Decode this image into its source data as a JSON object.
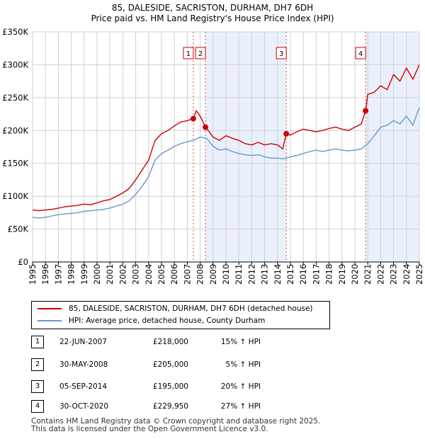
{
  "title_line1": "85, DALESIDE, SACRISTON, DURHAM, DH7 6DH",
  "title_line2": "Price paid vs. HM Land Registry's House Price Index (HPI)",
  "colors": {
    "property": "#cc0000",
    "hpi": "#6699cc",
    "shade": "#eaf0fb",
    "grid": "#d0d0d0",
    "marker_line": "#cc0000"
  },
  "legend": {
    "property_label": "85, DALESIDE, SACRISTON, DURHAM, DH7 6DH (detached house)",
    "hpi_label": "HPI: Average price, detached house, County Durham"
  },
  "sales": [
    {
      "num": "1",
      "date": "22-JUN-2007",
      "price": "£218,000",
      "hpi": "15% ↑ HPI"
    },
    {
      "num": "2",
      "date": "30-MAY-2008",
      "price": "£205,000",
      "hpi": "5% ↑ HPI"
    },
    {
      "num": "3",
      "date": "05-SEP-2014",
      "price": "£195,000",
      "hpi": "20% ↑ HPI"
    },
    {
      "num": "4",
      "date": "30-OCT-2020",
      "price": "£229,950",
      "hpi": "27% ↑ HPI"
    }
  ],
  "footer": {
    "line1": "Contains HM Land Registry data © Crown copyright and database right 2025.",
    "line2": "This data is licensed under the Open Government Licence v3.0."
  },
  "chart_data": {
    "type": "line",
    "title": "Price paid vs. HM Land Registry's House Price Index (HPI)",
    "xlim": [
      1995,
      2025
    ],
    "ylim": [
      0,
      350000
    ],
    "x_ticks": [
      "1995",
      "1996",
      "1997",
      "1998",
      "1999",
      "2000",
      "2001",
      "2002",
      "2003",
      "2004",
      "2005",
      "2006",
      "2007",
      "2008",
      "2009",
      "2010",
      "2011",
      "2012",
      "2013",
      "2014",
      "2015",
      "2016",
      "2017",
      "2018",
      "2019",
      "2020",
      "2021",
      "2022",
      "2023",
      "2024",
      "2025"
    ],
    "y_ticks": [
      {
        "value": 0,
        "label": "£0"
      },
      {
        "value": 50000,
        "label": "£50K"
      },
      {
        "value": 100000,
        "label": "£100K"
      },
      {
        "value": 150000,
        "label": "£150K"
      },
      {
        "value": 200000,
        "label": "£200K"
      },
      {
        "value": 250000,
        "label": "£250K"
      },
      {
        "value": 300000,
        "label": "£300K"
      },
      {
        "value": 350000,
        "label": "£350K"
      }
    ],
    "shaded_ranges": [
      [
        2008.41,
        2014.68
      ],
      [
        2020.83,
        2025.0
      ]
    ],
    "markers": [
      {
        "label": "1",
        "x": 2007.47,
        "y": 218000
      },
      {
        "label": "2",
        "x": 2008.41,
        "y": 205000
      },
      {
        "label": "3",
        "x": 2014.68,
        "y": 195000
      },
      {
        "label": "4",
        "x": 2020.83,
        "y": 229950
      }
    ],
    "series": [
      {
        "name": "85, DALESIDE, SACRISTON, DURHAM, DH7 6DH (detached house)",
        "x": [
          1995.0,
          1995.5,
          1996.0,
          1996.5,
          1997.0,
          1997.5,
          1998.0,
          1998.5,
          1999.0,
          1999.5,
          2000.0,
          2000.5,
          2001.0,
          2001.5,
          2002.0,
          2002.5,
          2003.0,
          2003.5,
          2004.0,
          2004.5,
          2005.0,
          2005.5,
          2006.0,
          2006.5,
          2007.0,
          2007.47,
          2007.7,
          2008.0,
          2008.41,
          2008.7,
          2009.0,
          2009.5,
          2010.0,
          2010.5,
          2011.0,
          2011.5,
          2012.0,
          2012.5,
          2013.0,
          2013.5,
          2014.0,
          2014.4,
          2014.68,
          2015.0,
          2015.5,
          2016.0,
          2016.5,
          2017.0,
          2017.5,
          2018.0,
          2018.5,
          2019.0,
          2019.5,
          2020.0,
          2020.5,
          2020.83,
          2021.0,
          2021.5,
          2022.0,
          2022.5,
          2023.0,
          2023.5,
          2024.0,
          2024.5,
          2025.0
        ],
        "y": [
          79000,
          78000,
          79000,
          80000,
          82000,
          84000,
          85000,
          86000,
          88000,
          87000,
          90000,
          93000,
          95000,
          100000,
          105000,
          112000,
          125000,
          140000,
          155000,
          185000,
          195000,
          200000,
          207000,
          213000,
          215000,
          218000,
          230000,
          222000,
          205000,
          198000,
          190000,
          185000,
          192000,
          188000,
          185000,
          180000,
          178000,
          182000,
          178000,
          180000,
          178000,
          172000,
          195000,
          193000,
          198000,
          202000,
          200000,
          198000,
          200000,
          203000,
          205000,
          202000,
          200000,
          205000,
          210000,
          229950,
          255000,
          258000,
          268000,
          262000,
          285000,
          275000,
          295000,
          278000,
          300000
        ]
      },
      {
        "name": "HPI: Average price, detached house, County Durham",
        "x": [
          1995.0,
          1995.5,
          1996.0,
          1996.5,
          1997.0,
          1997.5,
          1998.0,
          1998.5,
          1999.0,
          1999.5,
          2000.0,
          2000.5,
          2001.0,
          2001.5,
          2002.0,
          2002.5,
          2003.0,
          2003.5,
          2004.0,
          2004.5,
          2005.0,
          2005.5,
          2006.0,
          2006.5,
          2007.0,
          2007.5,
          2008.0,
          2008.5,
          2009.0,
          2009.5,
          2010.0,
          2010.5,
          2011.0,
          2011.5,
          2012.0,
          2012.5,
          2013.0,
          2013.5,
          2014.0,
          2014.5,
          2015.0,
          2015.5,
          2016.0,
          2016.5,
          2017.0,
          2017.5,
          2018.0,
          2018.5,
          2019.0,
          2019.5,
          2020.0,
          2020.5,
          2021.0,
          2021.5,
          2022.0,
          2022.5,
          2023.0,
          2023.5,
          2024.0,
          2024.5,
          2025.0
        ],
        "y": [
          68000,
          67000,
          68000,
          70000,
          72000,
          73000,
          74000,
          75000,
          77000,
          78000,
          79000,
          80000,
          82000,
          85000,
          88000,
          93000,
          103000,
          115000,
          130000,
          155000,
          165000,
          170000,
          176000,
          180000,
          183000,
          185000,
          190000,
          188000,
          176000,
          170000,
          172000,
          168000,
          165000,
          163000,
          162000,
          163000,
          160000,
          158000,
          158000,
          157000,
          160000,
          162000,
          165000,
          168000,
          170000,
          168000,
          170000,
          172000,
          170000,
          169000,
          170000,
          172000,
          180000,
          192000,
          205000,
          208000,
          215000,
          210000,
          222000,
          208000,
          235000
        ]
      }
    ]
  }
}
